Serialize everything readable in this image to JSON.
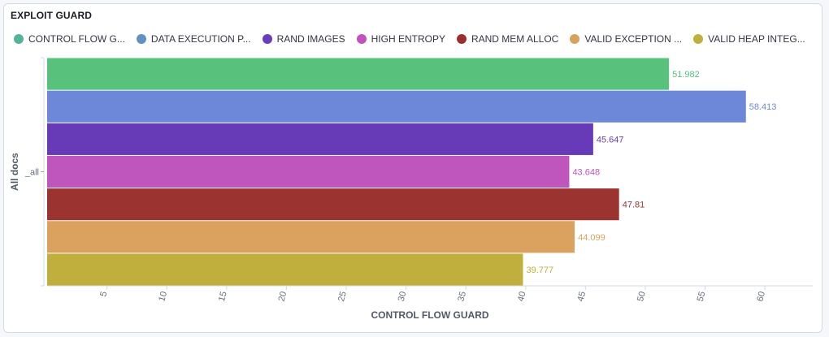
{
  "panel": {
    "title": "EXPLOIT GUARD"
  },
  "legend": [
    {
      "label": "CONTROL FLOW G...",
      "color": "#54b399"
    },
    {
      "label": "DATA EXECUTION P...",
      "color": "#6092c0"
    },
    {
      "label": "RAND IMAGES",
      "color": "#6a3dbf"
    },
    {
      "label": "HIGH ENTROPY",
      "color": "#c054bf"
    },
    {
      "label": "RAND MEM ALLOC",
      "color": "#9b3030"
    },
    {
      "label": "VALID EXCEPTION ...",
      "color": "#d9a15e"
    },
    {
      "label": "VALID HEAP INTEG...",
      "color": "#bfb03b"
    }
  ],
  "chart_data": {
    "type": "bar",
    "orientation": "horizontal",
    "xlabel": "CONTROL FLOW GUARD",
    "ylabel": "All docs",
    "categories": [
      "_all"
    ],
    "xlim": [
      0,
      64
    ],
    "xticks": [
      5,
      10,
      15,
      20,
      25,
      30,
      35,
      40,
      45,
      50,
      55,
      60
    ],
    "series": [
      {
        "name": "CONTROL FLOW G...",
        "values": [
          51.982
        ],
        "label": "51.982",
        "color": "#58c27d"
      },
      {
        "name": "DATA EXECUTION P...",
        "values": [
          58.413
        ],
        "label": "58.413",
        "color": "#6e88d9"
      },
      {
        "name": "RAND IMAGES",
        "values": [
          45.647
        ],
        "label": "45.647",
        "color": "#673ab7"
      },
      {
        "name": "HIGH ENTROPY",
        "values": [
          43.648
        ],
        "label": "43.648",
        "color": "#bf56bd"
      },
      {
        "name": "RAND MEM ALLOC",
        "values": [
          47.81
        ],
        "label": "47.81",
        "color": "#9b3330"
      },
      {
        "name": "VALID EXCEPTION ...",
        "values": [
          44.099
        ],
        "label": "44.099",
        "color": "#dba25f"
      },
      {
        "name": "VALID HEAP INTEG...",
        "values": [
          39.777
        ],
        "label": "39.777",
        "color": "#c0af3d"
      }
    ]
  }
}
